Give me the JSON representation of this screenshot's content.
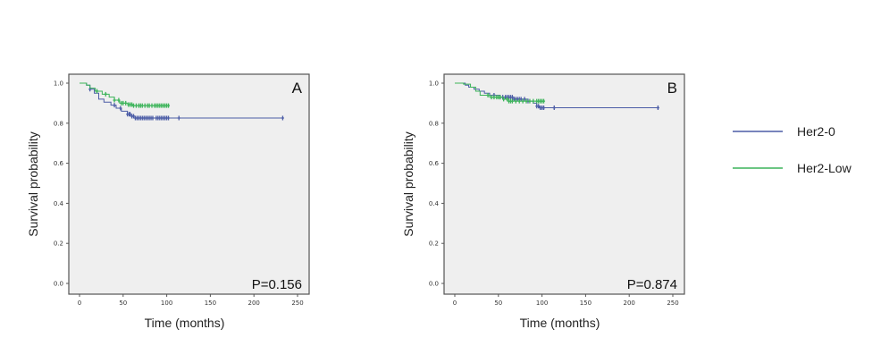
{
  "chart_data": [
    {
      "type": "line",
      "subtype": "kaplan-meier",
      "panel_label": "A",
      "p_value": "P=0.156",
      "xlabel": "Time (months)",
      "ylabel": "Survival probability",
      "xlim": [
        0,
        250
      ],
      "ylim": [
        0,
        1
      ],
      "xticks": [
        "0",
        "50",
        "100",
        "150",
        "200",
        "250"
      ],
      "yticks": [
        "0.0",
        "0.2",
        "0.4",
        "0.6",
        "0.8",
        "1.0"
      ],
      "series": [
        {
          "name": "Her2-0",
          "color": "#4b5ca6",
          "steps": [
            [
              0,
              1.0
            ],
            [
              8,
              0.99
            ],
            [
              12,
              0.97
            ],
            [
              17,
              0.95
            ],
            [
              22,
              0.92
            ],
            [
              28,
              0.905
            ],
            [
              36,
              0.89
            ],
            [
              42,
              0.875
            ],
            [
              48,
              0.86
            ],
            [
              55,
              0.845
            ],
            [
              60,
              0.835
            ],
            [
              64,
              0.826
            ]
          ],
          "end": 233,
          "censored": [
            12,
            40,
            47,
            55,
            57,
            58,
            60,
            62,
            64,
            66,
            68,
            70,
            72,
            74,
            76,
            78,
            80,
            82,
            84,
            88,
            90,
            92,
            94,
            96,
            98,
            100,
            102,
            114,
            233
          ]
        },
        {
          "name": "Her2-Low",
          "color": "#3cb45a",
          "steps": [
            [
              0,
              1.0
            ],
            [
              8,
              0.99
            ],
            [
              12,
              0.975
            ],
            [
              18,
              0.96
            ],
            [
              26,
              0.945
            ],
            [
              34,
              0.93
            ],
            [
              40,
              0.915
            ],
            [
              46,
              0.9
            ],
            [
              56,
              0.893
            ],
            [
              62,
              0.888
            ]
          ],
          "end": 102,
          "censored": [
            20,
            30,
            40,
            45,
            48,
            50,
            53,
            56,
            58,
            60,
            62,
            65,
            68,
            70,
            72,
            75,
            78,
            80,
            83,
            86,
            88,
            90,
            92,
            94,
            96,
            98,
            100,
            102
          ]
        }
      ]
    },
    {
      "type": "line",
      "subtype": "kaplan-meier",
      "panel_label": "B",
      "p_value": "P=0.874",
      "xlabel": "Time (months)",
      "ylabel": "Survival probability",
      "xlim": [
        0,
        250
      ],
      "ylim": [
        0,
        1
      ],
      "xticks": [
        "0",
        "50",
        "100",
        "150",
        "200",
        "250"
      ],
      "yticks": [
        "0.0",
        "0.2",
        "0.4",
        "0.6",
        "0.8",
        "1.0"
      ],
      "series": [
        {
          "name": "Her2-0",
          "color": "#4b5ca6",
          "steps": [
            [
              0,
              1.0
            ],
            [
              12,
              0.99
            ],
            [
              16,
              0.98
            ],
            [
              22,
              0.97
            ],
            [
              28,
              0.96
            ],
            [
              34,
              0.95
            ],
            [
              40,
              0.94
            ],
            [
              52,
              0.93
            ],
            [
              68,
              0.92
            ],
            [
              84,
              0.91
            ],
            [
              90,
              0.9
            ],
            [
              94,
              0.885
            ],
            [
              97,
              0.877
            ]
          ],
          "end": 233,
          "censored": [
            45,
            52,
            55,
            58,
            60,
            62,
            64,
            66,
            68,
            70,
            72,
            74,
            76,
            80,
            84,
            94,
            96,
            98,
            100,
            102,
            114,
            233
          ]
        },
        {
          "name": "Her2-Low",
          "color": "#3cb45a",
          "steps": [
            [
              0,
              1.0
            ],
            [
              10,
              0.995
            ],
            [
              18,
              0.98
            ],
            [
              24,
              0.96
            ],
            [
              29,
              0.94
            ],
            [
              40,
              0.93
            ],
            [
              56,
              0.92
            ],
            [
              62,
              0.91
            ]
          ],
          "end": 102,
          "censored": [
            38,
            42,
            45,
            48,
            50,
            52,
            56,
            60,
            62,
            64,
            66,
            70,
            74,
            78,
            82,
            86,
            90,
            94,
            96,
            98,
            100,
            102
          ]
        }
      ]
    }
  ],
  "legend": [
    {
      "label": "Her2-0",
      "color": "#4b5ca6"
    },
    {
      "label": "Her2-Low",
      "color": "#3cb45a"
    }
  ]
}
